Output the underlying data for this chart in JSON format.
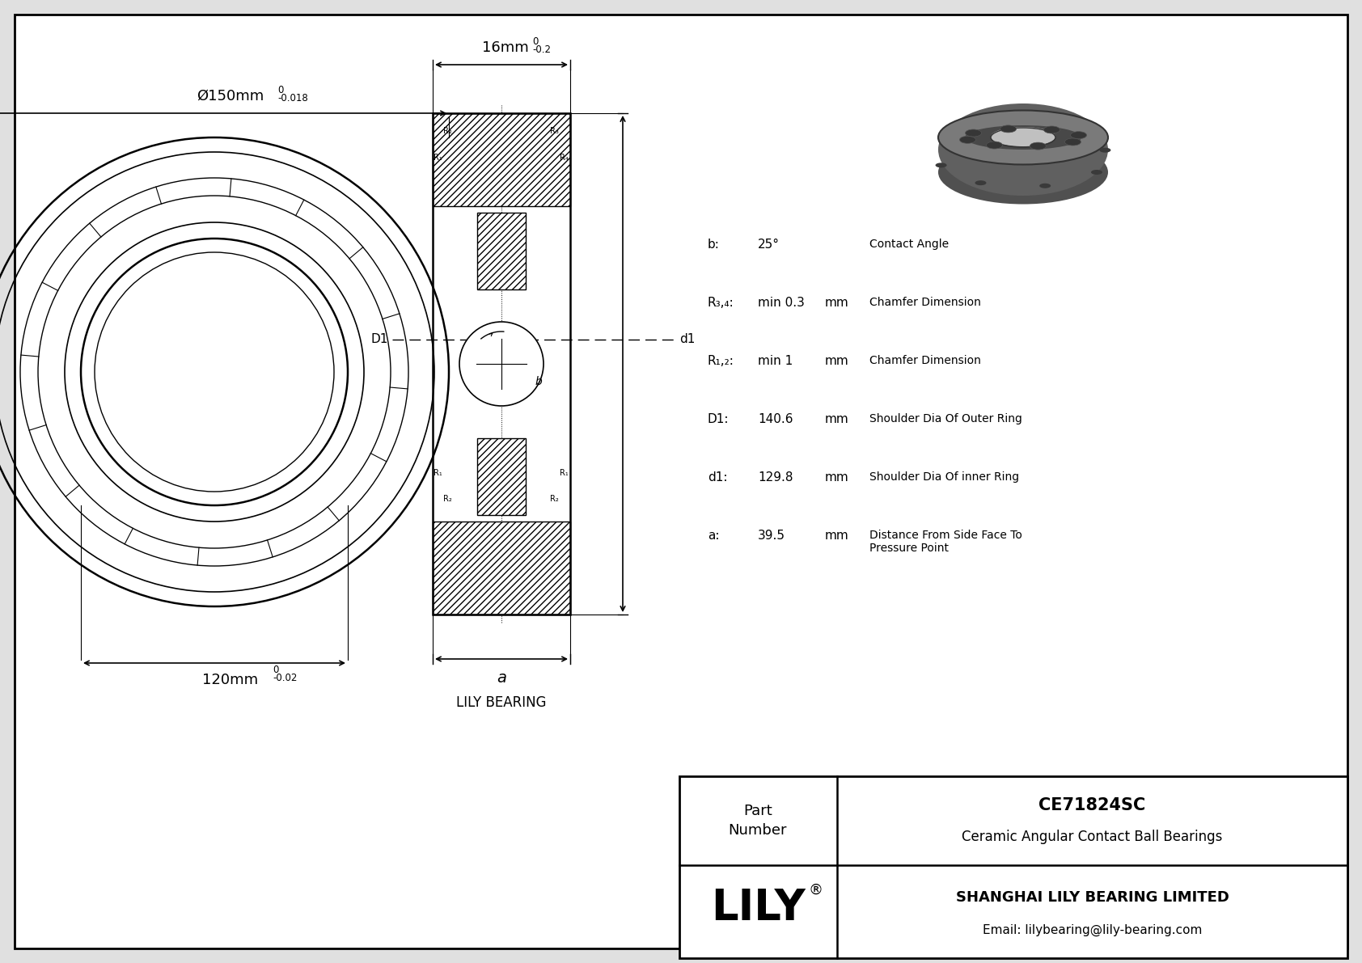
{
  "bg_color": "#e0e0e0",
  "line_color": "#000000",
  "outer_dia_label": "Ø150mm",
  "outer_tol_upper": "0",
  "outer_tol_lower": "-0.018",
  "width_label": "16mm",
  "width_tol_upper": "0",
  "width_tol_lower": "-0.2",
  "inner_dia_label": "120mm",
  "inner_tol_upper": "0",
  "inner_tol_lower": "-0.02",
  "params": [
    {
      "sym": "b:",
      "val": "25°",
      "unit": "",
      "desc": "Contact Angle"
    },
    {
      "sym": "R₃,₄:",
      "val": "min 0.3",
      "unit": "mm",
      "desc": "Chamfer Dimension"
    },
    {
      "sym": "R₁,₂:",
      "val": "min 1",
      "unit": "mm",
      "desc": "Chamfer Dimension"
    },
    {
      "sym": "D1:",
      "val": "140.6",
      "unit": "mm",
      "desc": "Shoulder Dia Of Outer Ring"
    },
    {
      "sym": "d1:",
      "val": "129.8",
      "unit": "mm",
      "desc": "Shoulder Dia Of inner Ring"
    },
    {
      "sym": "a:",
      "val": "39.5",
      "unit": "mm",
      "desc": "Distance From Side Face To\nPressure Point"
    }
  ],
  "lily_label": "LILY BEARING",
  "company": "SHANGHAI LILY BEARING LIMITED",
  "email": "Email: lilybearing@lily-bearing.com",
  "part_number": "CE71824SC",
  "part_type": "Ceramic Angular Contact Ball Bearings"
}
